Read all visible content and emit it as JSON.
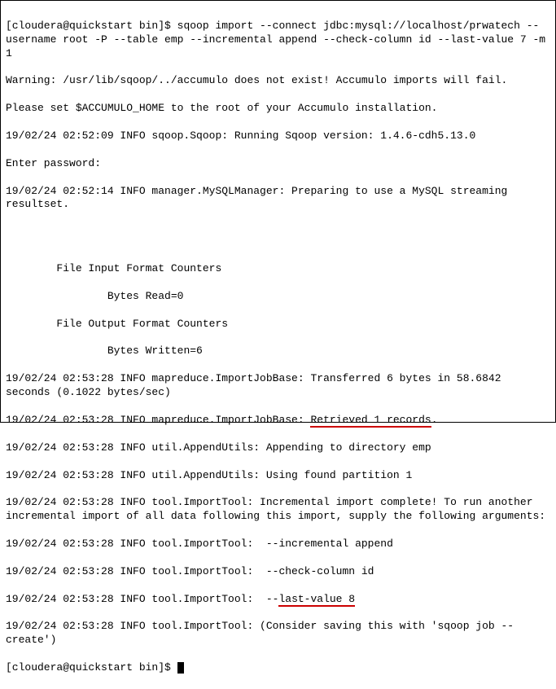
{
  "prompt1": "[cloudera@quickstart bin]$ ",
  "cmd": "sqoop import --connect jdbc:mysql://localhost/prwatech --username root -P --table emp --incremental append --check-column id --last-value 7 -m 1",
  "warn1": "Warning: /usr/lib/sqoop/../accumulo does not exist! Accumulo imports will fail.",
  "warn2": "Please set $ACCUMULO_HOME to the root of your Accumulo installation.",
  "log1": "19/02/24 02:52:09 INFO sqoop.Sqoop: Running Sqoop version: 1.4.6-cdh5.13.0",
  "enterpw": "Enter password:",
  "log2": "19/02/24 02:52:14 INFO manager.MySQLManager: Preparing to use a MySQL streaming resultset.",
  "c1": "        File Input Format Counters",
  "c2": "                Bytes Read=0",
  "c3": "        File Output Format Counters",
  "c4": "                Bytes Written=6",
  "log3": "19/02/24 02:53:28 INFO mapreduce.ImportJobBase: Transferred 6 bytes in 58.6842 seconds (0.1022 bytes/sec)",
  "log4a": "19/02/24 02:53:28 INFO mapreduce.ImportJobBase: ",
  "log4b": "Retrieved 1 records",
  "log4c": ".",
  "log5": "19/02/24 02:53:28 INFO util.AppendUtils: Appending to directory emp",
  "log6": "19/02/24 02:53:28 INFO util.AppendUtils: Using found partition 1",
  "log7": "19/02/24 02:53:28 INFO tool.ImportTool: Incremental import complete! To run another incremental import of all data following this import, supply the following arguments:",
  "log8": "19/02/24 02:53:28 INFO tool.ImportTool:  --incremental append",
  "log9": "19/02/24 02:53:28 INFO tool.ImportTool:  --check-column id",
  "log10a": "19/02/24 02:53:28 INFO tool.ImportTool:  --",
  "log10b": "last-value 8",
  "log11": "19/02/24 02:53:28 INFO tool.ImportTool: (Consider saving this with 'sqoop job --create')",
  "prompt2": "[cloudera@quickstart bin]$ "
}
